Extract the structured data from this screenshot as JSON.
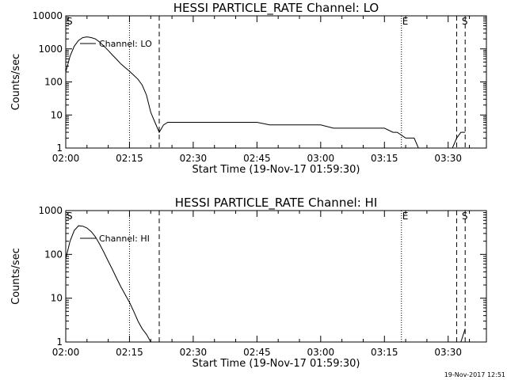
{
  "footer": {
    "timestamp": "19-Nov-2017 12:51"
  },
  "chart_data": [
    {
      "type": "line",
      "title": "HESSI PARTICLE_RATE Channel: LO",
      "xlabel": "Start Time (19-Nov-17 01:59:30)",
      "ylabel": "Counts/sec",
      "yscale": "log",
      "xlim": [
        "02:00",
        "03:39"
      ],
      "ylim": [
        1,
        10000
      ],
      "x_tick_labels": [
        "02:00",
        "02:15",
        "02:30",
        "02:45",
        "03:00",
        "03:15",
        "03:30"
      ],
      "y_tick_labels": [
        "1",
        "10",
        "100",
        "1000",
        "10000"
      ],
      "grid": false,
      "legend": {
        "position": "top-left",
        "entries": [
          "Channel: LO"
        ]
      },
      "markers": [
        {
          "time": "02:00",
          "label": "S"
        },
        {
          "time": "03:19",
          "label": "E"
        },
        {
          "time": "03:33",
          "label": "S"
        }
      ],
      "vlines": [
        {
          "time": "02:15",
          "style": "dotted"
        },
        {
          "time": "02:22",
          "style": "dashed"
        },
        {
          "time": "03:19",
          "style": "dotted"
        },
        {
          "time": "03:32",
          "style": "dashed"
        },
        {
          "time": "03:34",
          "style": "dashed"
        }
      ],
      "series": [
        {
          "name": "Channel: LO",
          "segments": [
            {
              "x": [
                "02:00",
                "02:01",
                "02:02",
                "02:03",
                "02:04",
                "02:05",
                "02:06",
                "02:07",
                "02:08",
                "02:09",
                "02:10",
                "02:11",
                "02:12",
                "02:13",
                "02:14",
                "02:15",
                "02:16",
                "02:17",
                "02:18",
                "02:19",
                "02:20",
                "02:21",
                "02:22",
                "02:23",
                "02:24",
                "02:25",
                "02:27",
                "02:30",
                "02:33",
                "02:36",
                "02:39",
                "02:42",
                "02:45",
                "02:48",
                "02:51",
                "02:54",
                "02:57",
                "03:00",
                "03:03",
                "03:06",
                "03:09",
                "03:12",
                "03:15",
                "03:17",
                "03:18",
                "03:20",
                "03:22",
                "03:23"
              ],
              "y": [
                200,
                600,
                1200,
                1800,
                2200,
                2300,
                2200,
                2000,
                1600,
                1200,
                900,
                650,
                480,
                350,
                270,
                210,
                160,
                120,
                80,
                40,
                12,
                6,
                3,
                5,
                6,
                6,
                6,
                6,
                6,
                6,
                6,
                6,
                6,
                5,
                5,
                5,
                5,
                5,
                4,
                4,
                4,
                4,
                4,
                3,
                3,
                2,
                2,
                1
              ]
            },
            {
              "x": [
                "03:31",
                "03:32",
                "03:33",
                "03:34"
              ],
              "y": [
                1,
                2,
                3,
                3
              ]
            }
          ]
        }
      ]
    },
    {
      "type": "line",
      "title": "HESSI PARTICLE_RATE Channel: HI",
      "xlabel": "Start Time (19-Nov-17 01:59:30)",
      "ylabel": "Counts/sec",
      "yscale": "log",
      "xlim": [
        "02:00",
        "03:39"
      ],
      "ylim": [
        1,
        1000
      ],
      "x_tick_labels": [
        "02:00",
        "02:15",
        "02:30",
        "02:45",
        "03:00",
        "03:15",
        "03:30"
      ],
      "y_tick_labels": [
        "1",
        "10",
        "100",
        "1000"
      ],
      "grid": false,
      "legend": {
        "position": "top-left",
        "entries": [
          "Channel: HI"
        ]
      },
      "markers": [
        {
          "time": "02:00",
          "label": "S"
        },
        {
          "time": "03:19",
          "label": "E"
        },
        {
          "time": "03:33",
          "label": "S"
        }
      ],
      "vlines": [
        {
          "time": "02:15",
          "style": "dotted"
        },
        {
          "time": "02:22",
          "style": "dashed"
        },
        {
          "time": "03:19",
          "style": "dotted"
        },
        {
          "time": "03:32",
          "style": "dashed"
        },
        {
          "time": "03:34",
          "style": "dashed"
        }
      ],
      "series": [
        {
          "name": "Channel: HI",
          "segments": [
            {
              "x": [
                "02:00",
                "02:01",
                "02:02",
                "02:03",
                "02:04",
                "02:05",
                "02:06",
                "02:07",
                "02:08",
                "02:09",
                "02:10",
                "02:11",
                "02:12",
                "02:13",
                "02:14",
                "02:15",
                "02:16",
                "02:17",
                "02:18",
                "02:19",
                "02:20"
              ],
              "y": [
                80,
                200,
                350,
                450,
                440,
                400,
                330,
                250,
                170,
                110,
                70,
                45,
                28,
                18,
                12,
                8,
                5,
                3,
                2,
                1.5,
                1
              ]
            },
            {
              "x": [
                "03:33",
                "03:34"
              ],
              "y": [
                1,
                2
              ]
            }
          ]
        }
      ]
    }
  ]
}
